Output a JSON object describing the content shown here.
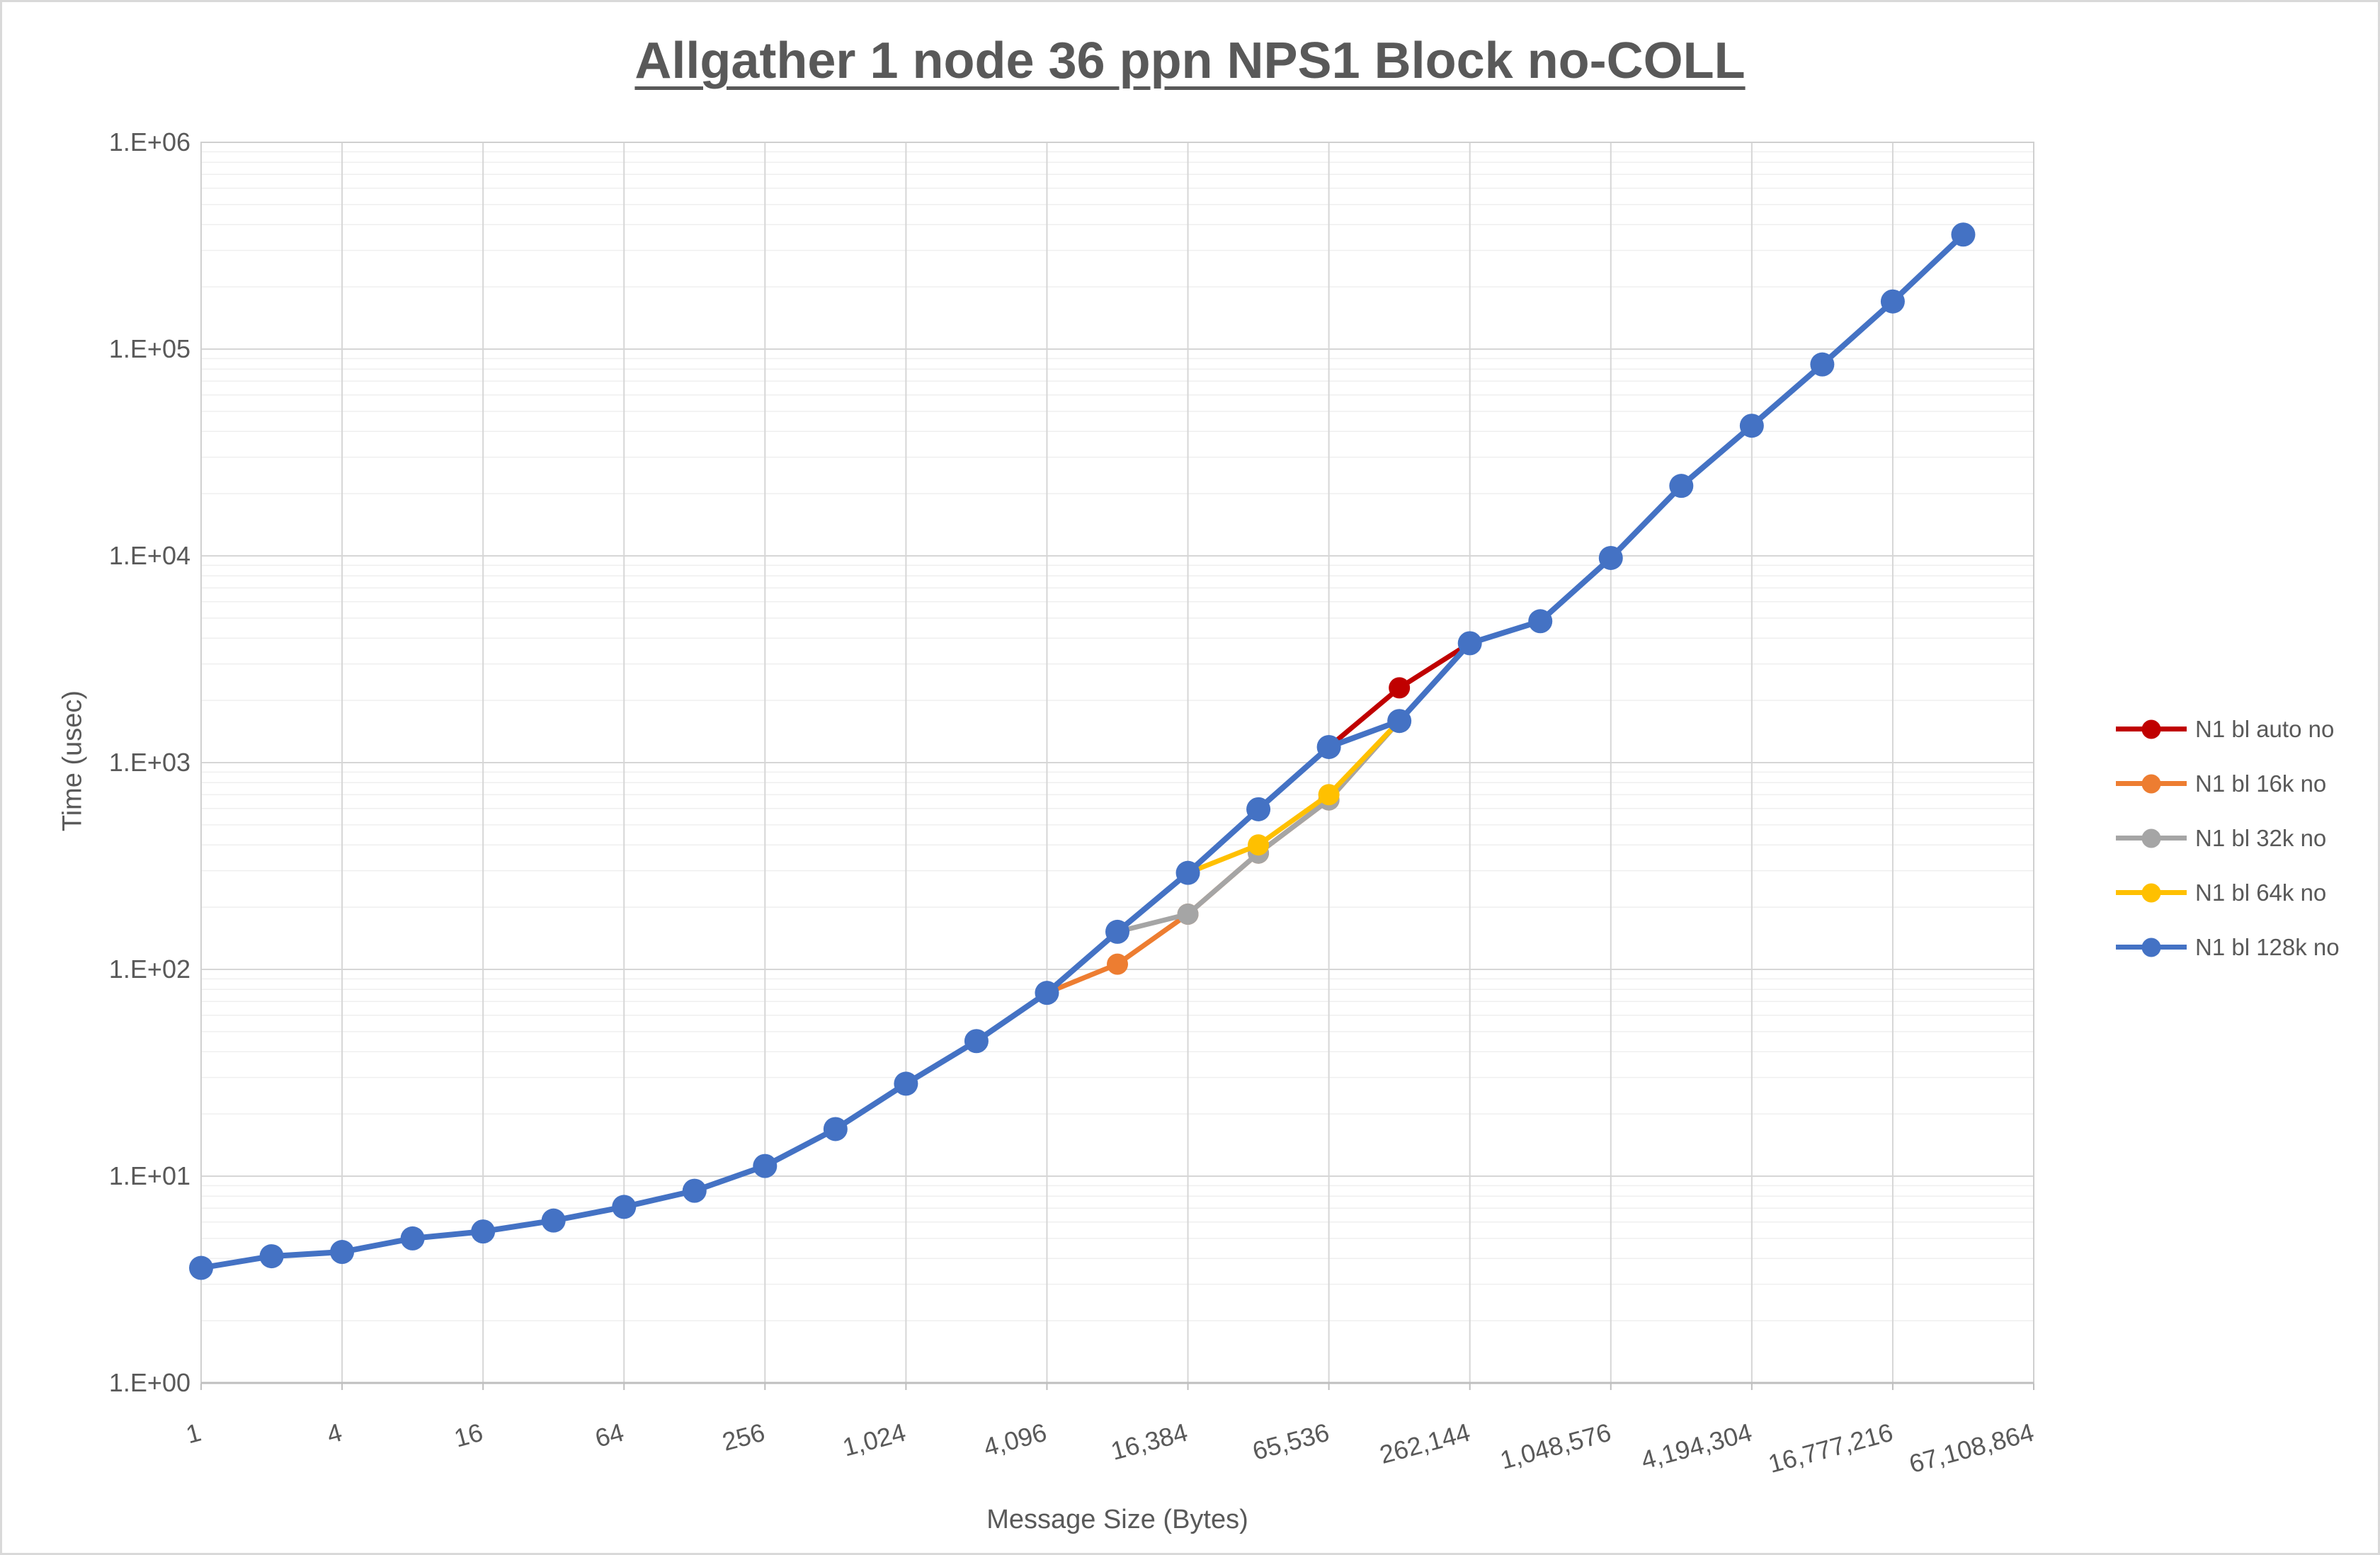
{
  "title": "Allgather 1 node 36 ppn NPS1 Block no-COLL",
  "x_axis": {
    "title": "Message Size (Bytes)",
    "tick_labels": [
      "1",
      "4",
      "16",
      "64",
      "256",
      "1,024",
      "4,096",
      "16,384",
      "65,536",
      "262,144",
      "1,048,576",
      "4,194,304",
      "16,777,216",
      "67,108,864"
    ],
    "tick_values": [
      1,
      4,
      16,
      64,
      256,
      1024,
      4096,
      16384,
      65536,
      262144,
      1048576,
      4194304,
      16777216,
      67108864
    ]
  },
  "y_axis": {
    "title": "Time (usec)",
    "tick_labels": [
      "1.E+00",
      "1.E+01",
      "1.E+02",
      "1.E+03",
      "1.E+04",
      "1.E+05",
      "1.E+06"
    ],
    "tick_values": [
      1,
      10,
      100,
      1000,
      10000,
      100000,
      1000000
    ]
  },
  "colors": {
    "text": "#595959",
    "major_grid": "#d6d6d6",
    "minor_grid": "#efefef",
    "plot_border": "#d0d0d0",
    "axis_line": "#bfbfbf"
  },
  "legend": {
    "position": "right",
    "items": [
      "N1 bl auto no",
      "N1 bl 16k no",
      "N1 bl 32k no",
      "N1 bl 64k no",
      "N1 bl 128k no"
    ]
  },
  "chart_data": {
    "type": "line",
    "title": "Allgather 1 node 36 ppn NPS1 Block no-COLL",
    "xlabel": "Message Size (Bytes)",
    "ylabel": "Time (usec)",
    "x_scale": "log2",
    "y_scale": "log10",
    "xlim": [
      1,
      67108864
    ],
    "ylim": [
      1,
      1000000
    ],
    "grid": "major-and-minor",
    "x": [
      1,
      2,
      4,
      8,
      16,
      32,
      64,
      128,
      256,
      512,
      1024,
      2048,
      4096,
      8192,
      16384,
      32768,
      65536,
      131072,
      262144,
      524288,
      1048576,
      2097152,
      4194304,
      8388608,
      16777216,
      33554432
    ],
    "series": [
      {
        "name": "N1 bl auto no",
        "color": "#c00000",
        "marker_radius": 15,
        "line_width": 7,
        "values": [
          3.6,
          4.1,
          4.3,
          5.0,
          5.4,
          6.1,
          7.1,
          8.5,
          11.2,
          16.9,
          28,
          45,
          77,
          152,
          293,
          595,
          1190,
          2300,
          3780,
          4830,
          9770,
          21800,
          42600,
          84300,
          170000,
          358000
        ]
      },
      {
        "name": "N1 bl 16k no",
        "color": "#ed7d31",
        "marker_radius": 15,
        "line_width": 7,
        "values": [
          3.6,
          4.1,
          4.3,
          5.0,
          5.4,
          6.1,
          7.1,
          8.5,
          11.2,
          16.9,
          28,
          45,
          77,
          106,
          185,
          365,
          660,
          1590,
          3780,
          4830,
          9770,
          21800,
          42600,
          84300,
          170000,
          358000
        ]
      },
      {
        "name": "N1 bl 32k no",
        "color": "#a5a5a5",
        "marker_radius": 15,
        "line_width": 7,
        "values": [
          3.6,
          4.1,
          4.3,
          5.0,
          5.4,
          6.1,
          7.1,
          8.5,
          11.2,
          16.9,
          28,
          45,
          77,
          152,
          185,
          365,
          660,
          1590,
          3780,
          4830,
          9770,
          21800,
          42600,
          84300,
          170000,
          358000
        ]
      },
      {
        "name": "N1 bl 64k no",
        "color": "#ffc000",
        "marker_radius": 15,
        "line_width": 7,
        "values": [
          3.6,
          4.1,
          4.3,
          5.0,
          5.4,
          6.1,
          7.1,
          8.5,
          11.2,
          16.9,
          28,
          45,
          77,
          152,
          293,
          400,
          700,
          1590,
          3780,
          4830,
          9770,
          21800,
          42600,
          84300,
          170000,
          358000
        ]
      },
      {
        "name": "N1 bl 128k no",
        "color": "#4472c4",
        "marker_radius": 17,
        "line_width": 8,
        "values": [
          3.6,
          4.1,
          4.3,
          5.0,
          5.4,
          6.1,
          7.1,
          8.5,
          11.2,
          16.9,
          28,
          45,
          77,
          152,
          293,
          595,
          1190,
          1590,
          3780,
          4830,
          9770,
          21800,
          42600,
          84300,
          170000,
          358000
        ]
      }
    ],
    "legend_order": [
      "N1 bl auto no",
      "N1 bl 16k no",
      "N1 bl 32k no",
      "N1 bl 64k no",
      "N1 bl 128k no"
    ]
  }
}
